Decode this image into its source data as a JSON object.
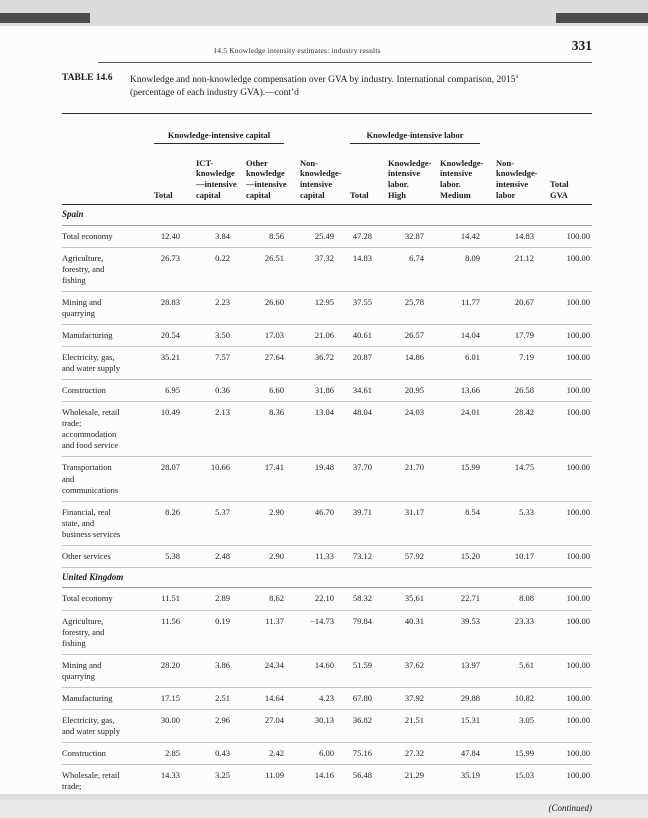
{
  "page": {
    "running_head": "14.5 Knowledge intensity estimates: industry results",
    "page_number": "331",
    "continued": "(Continued)"
  },
  "caption": {
    "label": "TABLE 14.6",
    "line1": "Knowledge and non-knowledge compensation over GVA by industry. International comparison, 2015",
    "footnote_marker": "a",
    "line2": "(percentage of each industry GVA).—cont’d"
  },
  "colors": {
    "footnote_marker_color": "#2a6fbd"
  },
  "table": {
    "groups": [
      "Knowledge-intensive capital",
      "Knowledge-intensive labor"
    ],
    "columns": [
      "Total",
      "ICT-\nknowledge\n—intensive\ncapital",
      "Other\nknowledge\n—intensive\ncapital",
      "Non-\nknowledge-\nintensive\ncapital",
      "Total",
      "Knowledge-\nintensive\nlabor.\nHigh",
      "Knowledge-\nintensive\nlabor.\nMedium",
      "Non-\nknowledge-\nintensive\nlabor",
      "Total\nGVA"
    ],
    "sections": [
      {
        "name": "Spain",
        "rows": [
          {
            "label": "Total economy",
            "values": [
              "12.40",
              "3.84",
              "8.56",
              "25.49",
              "47.28",
              "32.87",
              "14.42",
              "14.83",
              "100.00"
            ]
          },
          {
            "label": "Agriculture,\nforestry, and\nfishing",
            "values": [
              "26.73",
              "0.22",
              "26.51",
              "37.32",
              "14.83",
              "6.74",
              "8.09",
              "21.12",
              "100.00"
            ]
          },
          {
            "label": "Mining and\nquarrying",
            "values": [
              "28.83",
              "2.23",
              "26.60",
              "12.95",
              "37.55",
              "25.78",
              "11.77",
              "20.67",
              "100.00"
            ]
          },
          {
            "label": "Manufacturing",
            "values": [
              "20.54",
              "3.50",
              "17.03",
              "21.06",
              "40.61",
              "26.57",
              "14.04",
              "17.79",
              "100.00"
            ]
          },
          {
            "label": "Electricity, gas,\nand water supply",
            "values": [
              "35.21",
              "7.57",
              "27.64",
              "36.72",
              "20.87",
              "14.86",
              "6.01",
              "7.19",
              "100.00"
            ]
          },
          {
            "label": "Construction",
            "values": [
              "6.95",
              "0.36",
              "6.60",
              "31.86",
              "34.61",
              "20.95",
              "13.66",
              "26.58",
              "100.00"
            ]
          },
          {
            "label": "Wholesale, retail\ntrade;\naccommodation\nand food service",
            "values": [
              "10.49",
              "2.13",
              "8.36",
              "13.04",
              "48.04",
              "24.03",
              "24.01",
              "28.42",
              "100.00"
            ]
          },
          {
            "label": "Transportation\nand\ncommunications",
            "values": [
              "28.07",
              "10.66",
              "17.41",
              "19.48",
              "37.70",
              "21.70",
              "15.99",
              "14.75",
              "100.00"
            ]
          },
          {
            "label": "Financial, real\nstate, and\nbusiness services",
            "values": [
              "8.26",
              "5.37",
              "2.90",
              "46.70",
              "39.71",
              "31.17",
              "8.54",
              "5.33",
              "100.00"
            ]
          },
          {
            "label": "Other services",
            "values": [
              "5.38",
              "2.48",
              "2.90",
              "11.33",
              "73.12",
              "57.92",
              "15.20",
              "10.17",
              "100.00"
            ]
          }
        ]
      },
      {
        "name": "United Kingdom",
        "rows": [
          {
            "label": "Total economy",
            "values": [
              "11.51",
              "2.89",
              "8.62",
              "22.10",
              "58.32",
              "35.61",
              "22.71",
              "8.08",
              "100.00"
            ]
          },
          {
            "label": "Agriculture,\nforestry, and\nfishing",
            "values": [
              "11.56",
              "0.19",
              "11.37",
              "−14.73",
              "79.84",
              "40.31",
              "39.53",
              "23.33",
              "100.00"
            ]
          },
          {
            "label": "Mining and\nquarrying",
            "values": [
              "28.20",
              "3.86",
              "24.34",
              "14.60",
              "51.59",
              "37.62",
              "13.97",
              "5.61",
              "100.00"
            ]
          },
          {
            "label": "Manufacturing",
            "values": [
              "17.15",
              "2.51",
              "14.64",
              "4.23",
              "67.80",
              "37.92",
              "29.88",
              "10.82",
              "100.00"
            ]
          },
          {
            "label": "Electricity, gas,\nand water supply",
            "values": [
              "30.00",
              "2.96",
              "27.04",
              "30.13",
              "36.82",
              "21.51",
              "15.31",
              "3.05",
              "100.00"
            ]
          },
          {
            "label": "Construction",
            "values": [
              "2.85",
              "0.43",
              "2.42",
              "6.00",
              "75.16",
              "27.32",
              "47.84",
              "15.99",
              "100.00"
            ]
          },
          {
            "label": "Wholesale, retail\ntrade;",
            "values": [
              "14.33",
              "3.25",
              "11.09",
              "14.16",
              "56.48",
              "21.29",
              "35.19",
              "15.03",
              "100.00"
            ]
          }
        ]
      }
    ]
  }
}
